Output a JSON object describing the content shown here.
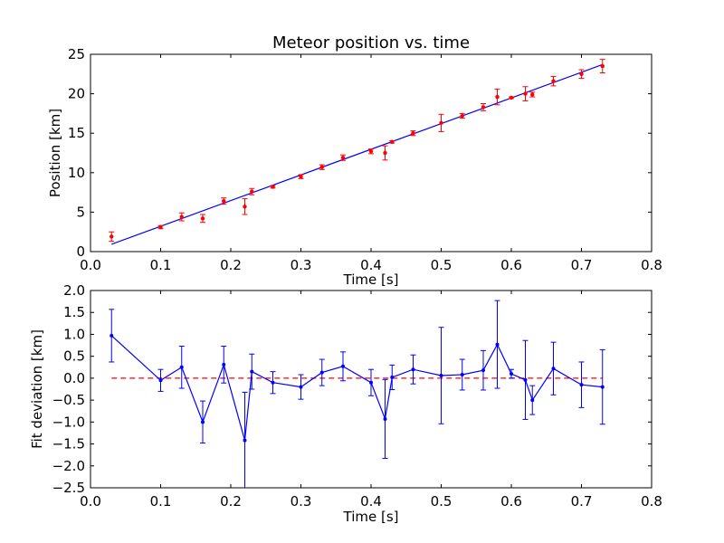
{
  "chart_data": [
    {
      "type": "scatter",
      "title": "Meteor position vs. time",
      "xlabel": "Time [s]",
      "ylabel": "Position [km]",
      "xlim": [
        0.0,
        0.8
      ],
      "ylim": [
        0,
        25
      ],
      "xticks": [
        "0.0",
        "0.1",
        "0.2",
        "0.3",
        "0.4",
        "0.5",
        "0.6",
        "0.7",
        "0.8"
      ],
      "yticks": [
        "0",
        "5",
        "10",
        "15",
        "20",
        "25"
      ],
      "grid": false,
      "colors": {
        "points": "#ff0000",
        "fit": "#0000ff"
      },
      "series": [
        {
          "kind": "errorbar-points",
          "x": [
            0.03,
            0.1,
            0.13,
            0.16,
            0.19,
            0.22,
            0.23,
            0.26,
            0.3,
            0.33,
            0.36,
            0.4,
            0.42,
            0.43,
            0.46,
            0.5,
            0.53,
            0.56,
            0.58,
            0.6,
            0.62,
            0.63,
            0.66,
            0.7,
            0.73
          ],
          "y": [
            1.9,
            3.1,
            4.4,
            4.2,
            6.4,
            5.7,
            7.6,
            8.2,
            9.5,
            10.7,
            11.9,
            12.7,
            12.5,
            13.9,
            15.0,
            16.3,
            17.2,
            18.3,
            19.6,
            19.5,
            20.0,
            19.9,
            21.6,
            22.5,
            23.5
          ],
          "err": [
            0.6,
            0.2,
            0.5,
            0.5,
            0.4,
            1.0,
            0.4,
            0.15,
            0.25,
            0.3,
            0.35,
            0.3,
            0.9,
            0.15,
            0.3,
            1.1,
            0.3,
            0.45,
            1.0,
            0.1,
            0.9,
            0.3,
            0.6,
            0.55,
            0.85
          ]
        },
        {
          "kind": "fit-line",
          "x": [
            0.03,
            0.73
          ],
          "y": [
            0.93,
            23.7
          ]
        }
      ]
    },
    {
      "type": "line",
      "title": "",
      "xlabel": "Time [s]",
      "ylabel": "Fit deviation [km]",
      "xlim": [
        0.0,
        0.8
      ],
      "ylim": [
        -2.5,
        2.0
      ],
      "xticks": [
        "0.0",
        "0.1",
        "0.2",
        "0.3",
        "0.4",
        "0.5",
        "0.6",
        "0.7",
        "0.8"
      ],
      "yticks": [
        "−2.5",
        "−2.0",
        "−1.5",
        "−1.0",
        "−0.5",
        "0.0",
        "0.5",
        "1.0",
        "1.5",
        "2.0"
      ],
      "grid": false,
      "colors": {
        "line": "#0000ff",
        "zero": "#ff0000"
      },
      "zero_line": {
        "x": [
          0.03,
          0.73
        ],
        "y": 0,
        "style": "dashed"
      },
      "series": [
        {
          "x": [
            0.03,
            0.1,
            0.13,
            0.16,
            0.19,
            0.22,
            0.23,
            0.26,
            0.3,
            0.33,
            0.36,
            0.4,
            0.42,
            0.43,
            0.46,
            0.5,
            0.53,
            0.56,
            0.58,
            0.6,
            0.62,
            0.63,
            0.66,
            0.7,
            0.73
          ],
          "y": [
            0.97,
            -0.05,
            0.25,
            -1.0,
            0.31,
            -1.42,
            0.15,
            -0.1,
            -0.2,
            0.13,
            0.27,
            -0.1,
            -0.93,
            0.02,
            0.2,
            0.06,
            0.08,
            0.18,
            0.77,
            0.1,
            -0.04,
            -0.5,
            0.22,
            -0.15,
            -0.2
          ],
          "err": [
            0.6,
            0.25,
            0.48,
            0.48,
            0.42,
            1.1,
            0.4,
            0.25,
            0.28,
            0.3,
            0.33,
            0.3,
            0.9,
            0.28,
            0.33,
            1.1,
            0.35,
            0.45,
            1.0,
            0.1,
            0.9,
            0.33,
            0.6,
            0.52,
            0.85
          ]
        }
      ]
    }
  ]
}
